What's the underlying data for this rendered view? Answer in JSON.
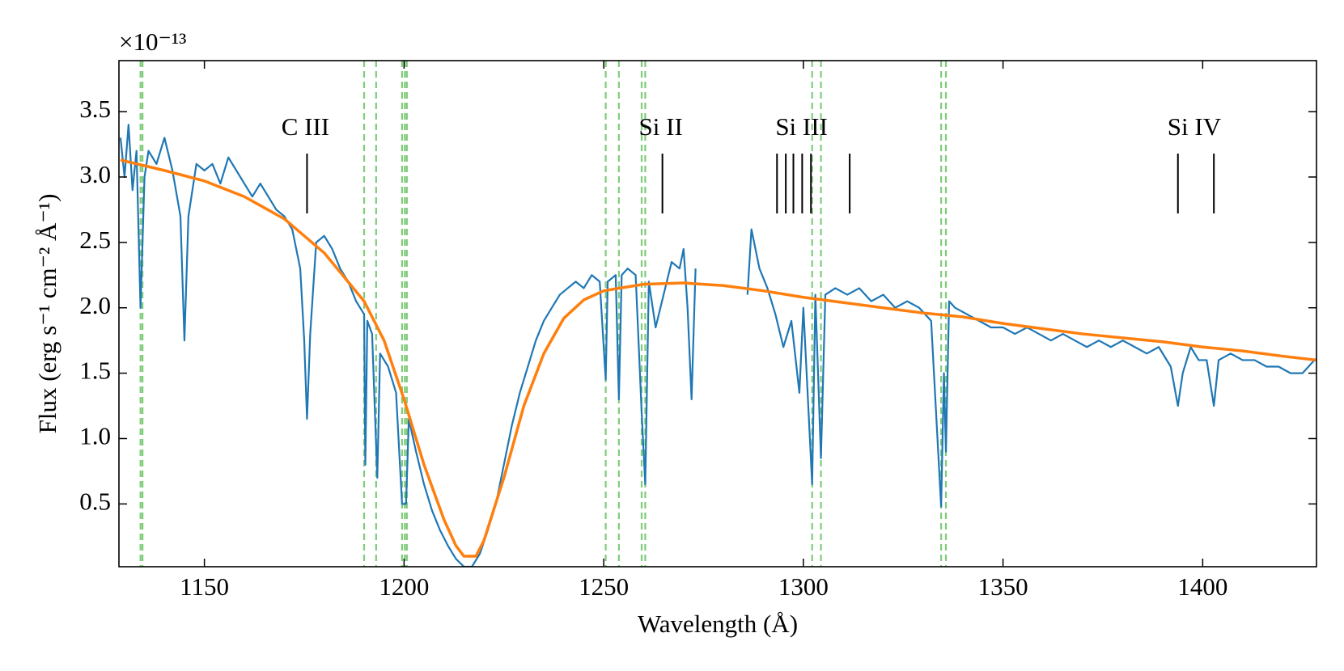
{
  "chart_data": {
    "type": "line",
    "xlabel": "Wavelength (Å)",
    "ylabel": "Flux (erg s⁻¹ cm⁻² Å⁻¹)",
    "y_offset_label": "×10⁻¹³",
    "xlim": [
      1128.6,
      1428.5
    ],
    "ylim": [
      0.02,
      3.89
    ],
    "xticks": [
      1150,
      1200,
      1250,
      1300,
      1350,
      1400
    ],
    "yticks": [
      0.5,
      {
        "value": 1,
        "label": "1.0"
      },
      1.5,
      {
        "value": 2,
        "label": "2.0"
      },
      2.5,
      {
        "value": 3,
        "label": "3.0"
      },
      3.5
    ],
    "series": [
      {
        "color": "#1f77b4",
        "x": [
          1129,
          1130,
          1131,
          1132,
          1133,
          1134,
          1135,
          1136,
          1138,
          1140,
          1142,
          1144,
          1145,
          1146,
          1148,
          1150,
          1152,
          1154,
          1156,
          1158,
          1160,
          1162,
          1164,
          1166,
          1168,
          1170,
          1172,
          1174,
          1175,
          1175.7,
          1176.5,
          1178,
          1180,
          1182,
          1184,
          1186,
          1188,
          1190,
          1190.3,
          1190.8,
          1192,
          1193.3,
          1194,
          1196,
          1198,
          1199.5,
          1200.5,
          1201.2,
          1203,
          1205,
          1207,
          1209,
          1211,
          1213,
          1215,
          1217,
          1219,
          1221,
          1223,
          1225,
          1227,
          1229,
          1231,
          1233,
          1235,
          1237,
          1239,
          1241,
          1243,
          1245,
          1247,
          1249,
          1250.5,
          1251,
          1253,
          1253.8,
          1254.5,
          1256,
          1258,
          1259.5,
          1260.4,
          1261.3,
          1263,
          1265,
          1267,
          1269,
          1270,
          1271,
          1272,
          1273,
          1280,
          1286,
          1287,
          1289,
          1291,
          1293,
          1295,
          1297,
          1299,
          1300,
          1302.2,
          1303,
          1304.4,
          1305.5,
          1308,
          1311,
          1314,
          1317,
          1320,
          1323,
          1326,
          1329,
          1332,
          1334.5,
          1335.2,
          1335.7,
          1336.5,
          1338,
          1341,
          1344,
          1347,
          1350,
          1353,
          1356,
          1359,
          1362,
          1365,
          1368,
          1371,
          1374,
          1377,
          1380,
          1383,
          1386,
          1389,
          1392,
          1393.8,
          1395,
          1397,
          1399,
          1401,
          1402.8,
          1404,
          1407,
          1410,
          1413,
          1416,
          1419,
          1422,
          1425,
          1428
        ],
        "values": [
          3.3,
          3.0,
          3.4,
          2.9,
          3.2,
          2.0,
          3.0,
          3.2,
          3.1,
          3.3,
          3.05,
          2.7,
          1.75,
          2.7,
          3.1,
          3.05,
          3.1,
          2.95,
          3.15,
          3.05,
          2.95,
          2.85,
          2.95,
          2.85,
          2.75,
          2.7,
          2.6,
          2.3,
          1.75,
          1.15,
          1.8,
          2.5,
          2.55,
          2.45,
          2.3,
          2.2,
          2.05,
          1.95,
          0.8,
          1.9,
          1.8,
          0.7,
          1.65,
          1.55,
          1.35,
          0.5,
          0.5,
          1.15,
          0.9,
          0.65,
          0.45,
          0.3,
          0.18,
          0.08,
          0.02,
          0.02,
          0.12,
          0.3,
          0.5,
          0.8,
          1.1,
          1.35,
          1.55,
          1.75,
          1.9,
          2.0,
          2.1,
          2.15,
          2.2,
          2.15,
          2.25,
          2.2,
          1.45,
          2.2,
          2.25,
          1.3,
          2.25,
          2.3,
          2.25,
          1.2,
          0.65,
          2.2,
          1.85,
          2.1,
          2.35,
          2.3,
          2.45,
          2.0,
          1.3,
          2.3,
          null,
          2.1,
          2.6,
          2.3,
          2.15,
          1.95,
          1.7,
          1.9,
          1.35,
          2.0,
          0.65,
          2.1,
          0.85,
          2.1,
          2.15,
          2.1,
          2.15,
          2.05,
          2.1,
          2.0,
          2.05,
          2.0,
          1.9,
          0.48,
          1.5,
          0.9,
          2.05,
          2.0,
          1.95,
          1.9,
          1.85,
          1.85,
          1.8,
          1.85,
          1.8,
          1.75,
          1.8,
          1.75,
          1.7,
          1.75,
          1.7,
          1.75,
          1.7,
          1.65,
          1.7,
          1.55,
          1.25,
          1.5,
          1.7,
          1.6,
          1.6,
          1.25,
          1.6,
          1.65,
          1.6,
          1.6,
          1.55,
          1.55,
          1.5,
          1.5,
          1.6
        ]
      },
      {
        "color": "#ff7f0e",
        "x": [
          1129,
          1140,
          1150,
          1160,
          1170,
          1180,
          1190,
          1195,
          1200,
          1205,
          1210,
          1213,
          1215,
          1218,
          1220,
          1225,
          1230,
          1235,
          1240,
          1245,
          1250,
          1260,
          1270,
          1280,
          1290,
          1300,
          1310,
          1320,
          1330,
          1340,
          1350,
          1360,
          1370,
          1380,
          1390,
          1400,
          1410,
          1420,
          1428.5
        ],
        "values": [
          3.13,
          3.05,
          2.97,
          2.85,
          2.68,
          2.42,
          2.05,
          1.75,
          1.3,
          0.8,
          0.38,
          0.18,
          0.1,
          0.1,
          0.22,
          0.7,
          1.25,
          1.65,
          1.92,
          2.06,
          2.13,
          2.18,
          2.19,
          2.17,
          2.13,
          2.08,
          2.04,
          2.0,
          1.96,
          1.93,
          1.88,
          1.84,
          1.8,
          1.77,
          1.74,
          1.7,
          1.67,
          1.63,
          1.6
        ]
      }
    ],
    "dashed_lines": {
      "color": "#7fcc7a",
      "x": [
        1134,
        1134.5,
        1190,
        1193,
        1199.5,
        1200.2,
        1200.7,
        1250.5,
        1253.8,
        1259.5,
        1260.4,
        1302.2,
        1304.4,
        1334.5,
        1335.7
      ]
    },
    "line_ids": [
      {
        "label": "C III",
        "x": [
          1175.7
        ]
      },
      {
        "label": "Si II",
        "x": [
          1264.7
        ]
      },
      {
        "label": "Si III",
        "x": [
          1293.4,
          1295.6,
          1297.5,
          1299.7,
          1301.9,
          1311.6
        ]
      },
      {
        "label": "Si IV",
        "x": [
          1393.8,
          1402.8
        ]
      }
    ]
  }
}
